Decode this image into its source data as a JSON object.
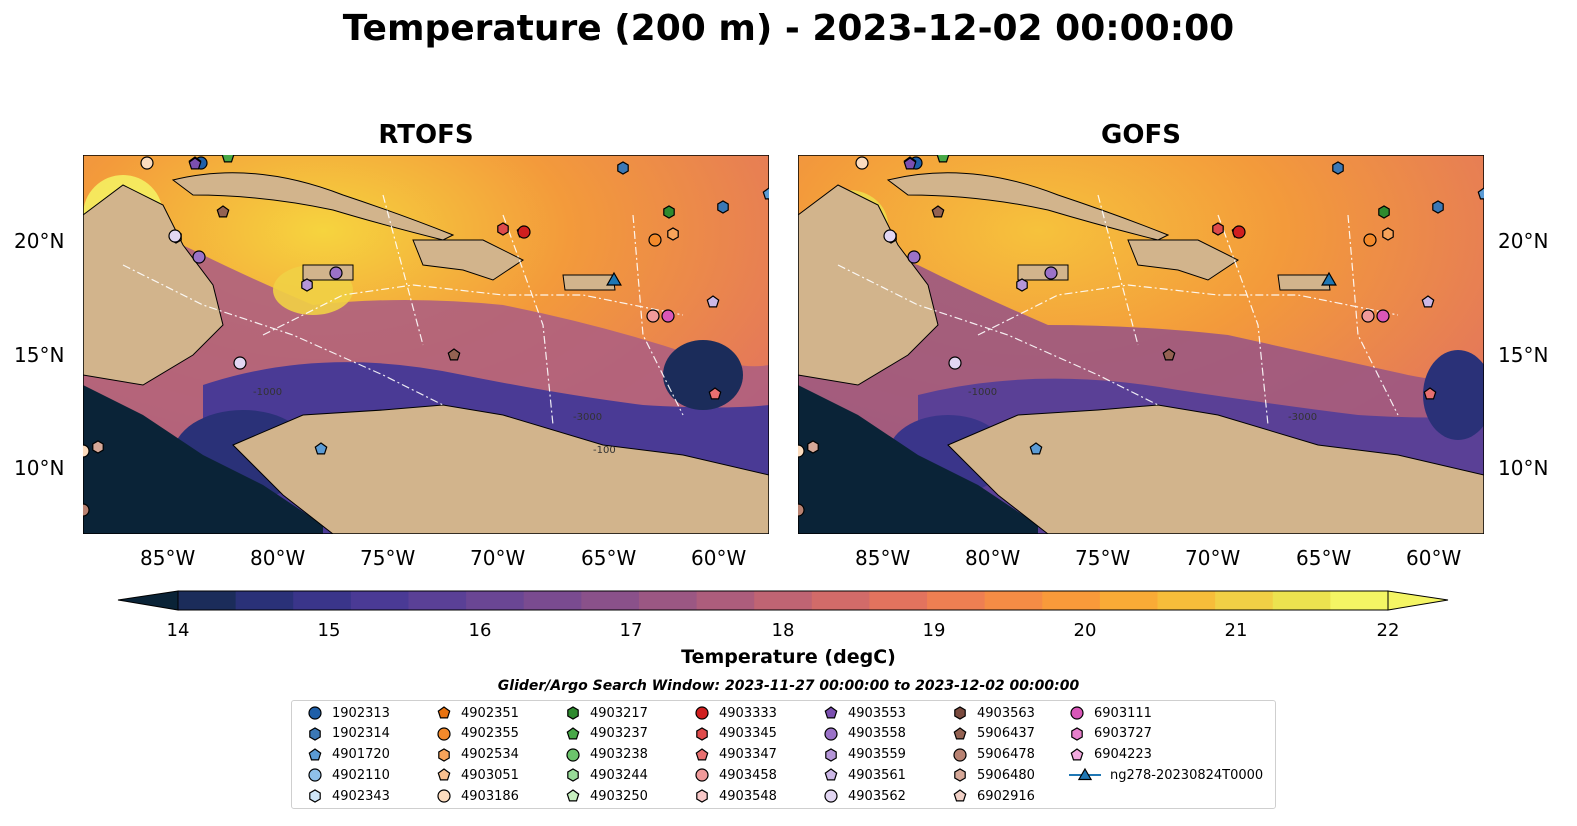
{
  "title": "Temperature (200 m) - 2023-12-02 00:00:00",
  "panels": [
    {
      "title": "RTOFS"
    },
    {
      "title": "GOFS"
    }
  ],
  "lon_ticks": [
    "85°W",
    "80°W",
    "75°W",
    "70°W",
    "65°W",
    "60°W"
  ],
  "lat_ticks": [
    "20°N",
    "15°N",
    "10°N"
  ],
  "contour_labels": [
    "-100",
    "-1000",
    "-3000"
  ],
  "colorbar": {
    "label": "Temperature (degC)",
    "ticks": [
      "14",
      "15",
      "16",
      "17",
      "18",
      "19",
      "20",
      "21",
      "22"
    ],
    "min": 14,
    "max": 22,
    "extend": "both",
    "colors": [
      "#0a2337",
      "#1b2c5a",
      "#2a3178",
      "#3a358a",
      "#4a3a95",
      "#5a4096",
      "#6a4694",
      "#7a4b90",
      "#8a518a",
      "#9b5783",
      "#ad5d7c",
      "#c06473",
      "#d26b69",
      "#e2735e",
      "#ee7f52",
      "#f58c45",
      "#f99a3a",
      "#f9ab36",
      "#f6bd3a",
      "#f1d045",
      "#ece34f",
      "#f4f564"
    ]
  },
  "search_window": "Glider/Argo Search Window: 2023-11-27 00:00:00 to 2023-12-02 00:00:00",
  "legend": [
    {
      "label": "1902313",
      "marker": "circle",
      "color": "#1f5fa8"
    },
    {
      "label": "1902314",
      "marker": "hexagon",
      "color": "#3b78b5"
    },
    {
      "label": "4901720",
      "marker": "pentagon",
      "color": "#5b9bd5"
    },
    {
      "label": "4902110",
      "marker": "circle",
      "color": "#8fc1ea"
    },
    {
      "label": "4902343",
      "marker": "hexagon",
      "color": "#cfe6f8"
    },
    {
      "label": "4902351",
      "marker": "pentagon",
      "color": "#e8720f"
    },
    {
      "label": "4902355",
      "marker": "circle",
      "color": "#f48a2b"
    },
    {
      "label": "4902534",
      "marker": "hexagon",
      "color": "#f7a35a"
    },
    {
      "label": "4903051",
      "marker": "pentagon",
      "color": "#f9c08f"
    },
    {
      "label": "4903186",
      "marker": "circle",
      "color": "#fbdcbf"
    },
    {
      "label": "4903217",
      "marker": "hexagon",
      "color": "#2e8a2e"
    },
    {
      "label": "4903237",
      "marker": "pentagon",
      "color": "#48a848"
    },
    {
      "label": "4903238",
      "marker": "circle",
      "color": "#6cc46c"
    },
    {
      "label": "4903244",
      "marker": "hexagon",
      "color": "#98da98"
    },
    {
      "label": "4903250",
      "marker": "pentagon",
      "color": "#c8f0c0"
    },
    {
      "label": "4903333",
      "marker": "circle",
      "color": "#d01f1f"
    },
    {
      "label": "4903345",
      "marker": "hexagon",
      "color": "#de4a4a"
    },
    {
      "label": "4903347",
      "marker": "pentagon",
      "color": "#e87070"
    },
    {
      "label": "4903458",
      "marker": "circle",
      "color": "#f09a9a"
    },
    {
      "label": "4903548",
      "marker": "hexagon",
      "color": "#f8c8c8"
    },
    {
      "label": "4903553",
      "marker": "pentagon",
      "color": "#7b4fb0"
    },
    {
      "label": "4903558",
      "marker": "circle",
      "color": "#9b72c8"
    },
    {
      "label": "4903559",
      "marker": "hexagon",
      "color": "#b596d8"
    },
    {
      "label": "4903561",
      "marker": "pentagon",
      "color": "#ccb8e6"
    },
    {
      "label": "4903562",
      "marker": "circle",
      "color": "#e2d6f2"
    },
    {
      "label": "4903563",
      "marker": "hexagon",
      "color": "#7a4a3e"
    },
    {
      "label": "5906437",
      "marker": "pentagon",
      "color": "#946252"
    },
    {
      "label": "5906478",
      "marker": "circle",
      "color": "#b88272"
    },
    {
      "label": "5906480",
      "marker": "hexagon",
      "color": "#d6a898"
    },
    {
      "label": "6902916",
      "marker": "pentagon",
      "color": "#f0d0c6"
    },
    {
      "label": "6903111",
      "marker": "circle",
      "color": "#d957b8"
    },
    {
      "label": "6903727",
      "marker": "hexagon",
      "color": "#e67fcb"
    },
    {
      "label": "6904223",
      "marker": "pentagon",
      "color": "#f2aadf"
    },
    {
      "label": "ng278-20230824T0000",
      "marker": "triangle-line",
      "color": "#1f77b4"
    }
  ]
}
